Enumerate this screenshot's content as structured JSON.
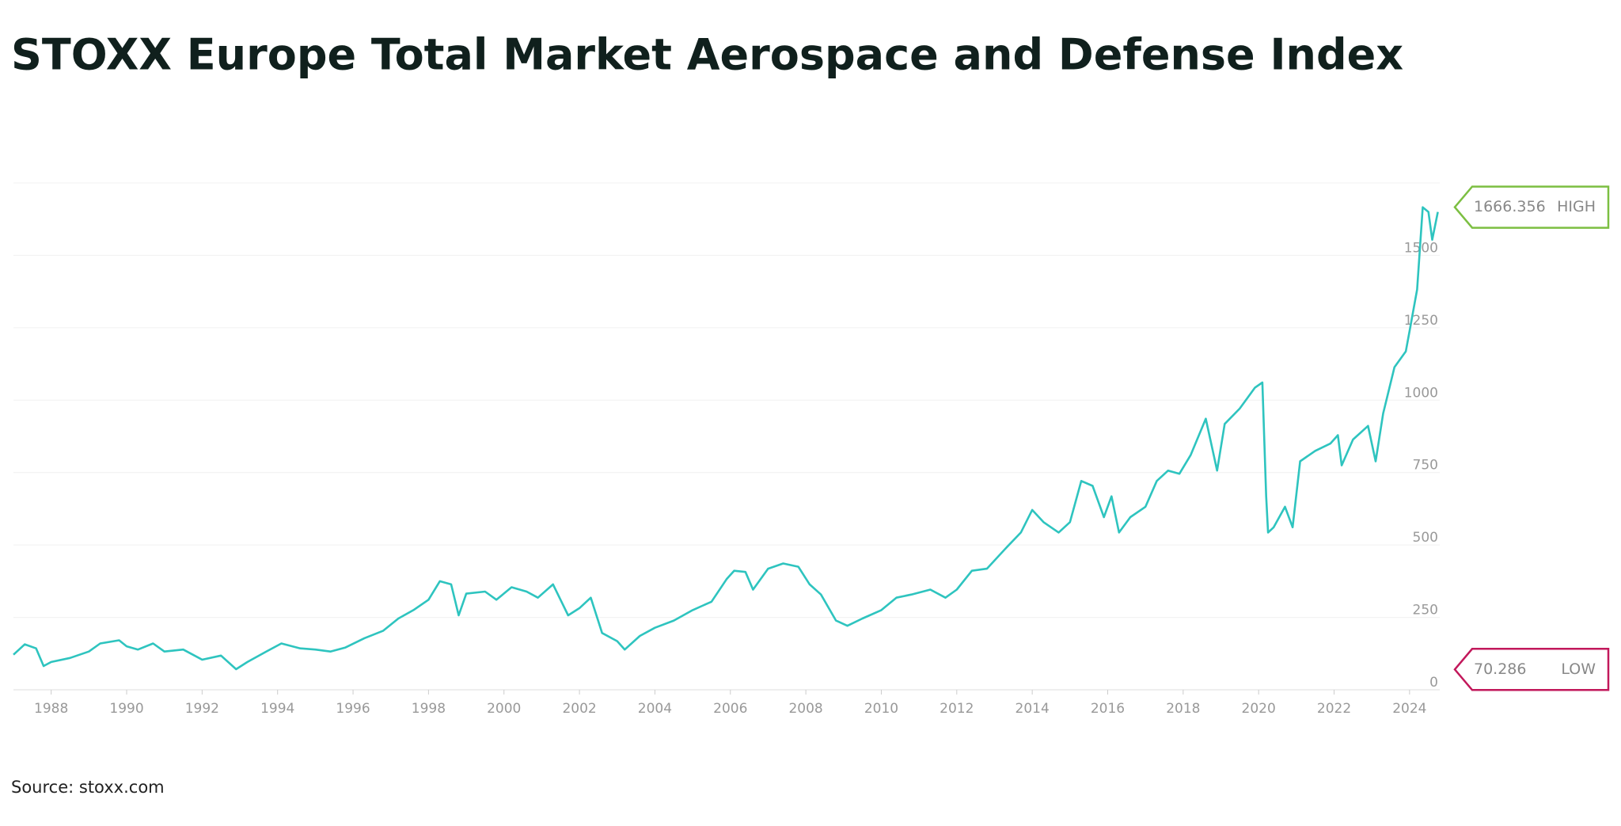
{
  "chart_data": {
    "type": "line",
    "title": "STOXX Europe Total Market Aerospace and Defense Index",
    "source": "Source: stoxx.com",
    "color": "#2ec4bf",
    "x": [
      1987.0,
      1987.3,
      1987.6,
      1987.8,
      1988.0,
      1988.5,
      1989.0,
      1989.3,
      1989.8,
      1990.0,
      1990.3,
      1990.7,
      1991.0,
      1991.5,
      1992.0,
      1992.5,
      1992.9,
      1993.2,
      1993.7,
      1994.1,
      1994.6,
      1995.0,
      1995.4,
      1995.8,
      1996.3,
      1996.8,
      1997.2,
      1997.6,
      1998.0,
      1998.3,
      1998.6,
      1998.8,
      1999.0,
      1999.5,
      1999.8,
      2000.2,
      2000.6,
      2000.9,
      2001.3,
      2001.7,
      2002.0,
      2002.3,
      2002.6,
      2003.0,
      2003.2,
      2003.6,
      2004.0,
      2004.5,
      2005.0,
      2005.5,
      2005.9,
      2006.1,
      2006.4,
      2006.6,
      2007.0,
      2007.4,
      2007.8,
      2008.1,
      2008.4,
      2008.8,
      2009.1,
      2009.5,
      2010.0,
      2010.4,
      2010.8,
      2011.3,
      2011.7,
      2012.0,
      2012.4,
      2012.8,
      2013.3,
      2013.7,
      2014.0,
      2014.3,
      2014.7,
      2015.0,
      2015.3,
      2015.6,
      2015.9,
      2016.1,
      2016.3,
      2016.6,
      2017.0,
      2017.3,
      2017.6,
      2017.9,
      2018.2,
      2018.6,
      2018.9,
      2019.1,
      2019.5,
      2019.9,
      2020.1,
      2020.2,
      2020.25,
      2020.4,
      2020.7,
      2020.9,
      2021.1,
      2021.5,
      2021.9,
      2022.1,
      2022.2,
      2022.5,
      2022.9,
      2023.1,
      2023.3,
      2023.6,
      2023.9,
      2024.0,
      2024.2,
      2024.35,
      2024.5,
      2024.6,
      2024.75
    ],
    "values": [
      121,
      157,
      143,
      82,
      96,
      110,
      132,
      160,
      171,
      150,
      139,
      160,
      132,
      139,
      104,
      118,
      71,
      96,
      132,
      160,
      143,
      139,
      132,
      146,
      178,
      204,
      246,
      275,
      311,
      375,
      364,
      257,
      332,
      339,
      311,
      354,
      339,
      318,
      364,
      257,
      282,
      318,
      196,
      168,
      139,
      186,
      214,
      239,
      275,
      304,
      382,
      411,
      407,
      346,
      418,
      436,
      425,
      364,
      329,
      239,
      221,
      246,
      275,
      318,
      329,
      346,
      318,
      346,
      411,
      418,
      489,
      543,
      621,
      579,
      543,
      579,
      721,
      704,
      596,
      668,
      543,
      596,
      632,
      721,
      757,
      746,
      811,
      936,
      757,
      918,
      971,
      1043,
      1061,
      668,
      543,
      561,
      632,
      561,
      789,
      825,
      850,
      879,
      775,
      864,
      911,
      789,
      954,
      1114,
      1168,
      1239,
      1382,
      1666,
      1650,
      1554,
      1650
    ],
    "xlim": [
      1987,
      2024.8
    ],
    "xticks": [
      1988,
      1990,
      1992,
      1994,
      1996,
      1998,
      2000,
      2002,
      2004,
      2006,
      2008,
      2010,
      2012,
      2014,
      2016,
      2018,
      2020,
      2022,
      2024
    ],
    "ylim": [
      0,
      1750
    ],
    "yticks": [
      0,
      250,
      500,
      750,
      1000,
      1250,
      1500
    ],
    "grid": true,
    "annotations": [
      {
        "value": 1666.356,
        "label": "HIGH",
        "color": "#7cbf42"
      },
      {
        "value": 70.286,
        "label": "LOW",
        "color": "#c2185b"
      }
    ]
  }
}
